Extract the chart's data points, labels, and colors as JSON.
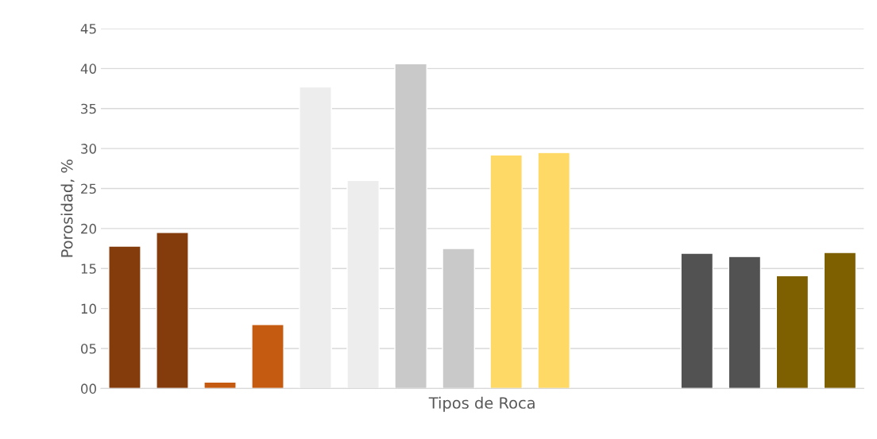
{
  "chart_data": {
    "type": "bar",
    "xlabel": "Tipos de Roca",
    "ylabel": "Porosidad, %",
    "categories": [
      null,
      null,
      null,
      null,
      null,
      null,
      null,
      null,
      null,
      null,
      null,
      null,
      null,
      null,
      null,
      null
    ],
    "values": [
      17.8,
      19.5,
      0.8,
      8.0,
      37.7,
      26.0,
      40.6,
      17.5,
      29.2,
      29.5,
      null,
      null,
      16.9,
      16.5,
      14.1,
      17.0
    ],
    "colors": [
      "#843c0c",
      "#843c0c",
      "#c55a11",
      "#c55a11",
      "#ededed",
      "#ededed",
      "#c9c9c9",
      "#c9c9c9",
      "#ffd966",
      "#ffd966",
      "#ffffff",
      "#ffffff",
      "#525252",
      "#525252",
      "#7f6000",
      "#7f6000"
    ],
    "ylim": [
      0,
      45
    ],
    "yticks": [
      {
        "value": 0,
        "label": "00"
      },
      {
        "value": 5,
        "label": "05"
      },
      10,
      15,
      20,
      25,
      30,
      35,
      40,
      45
    ],
    "grid": "y"
  }
}
